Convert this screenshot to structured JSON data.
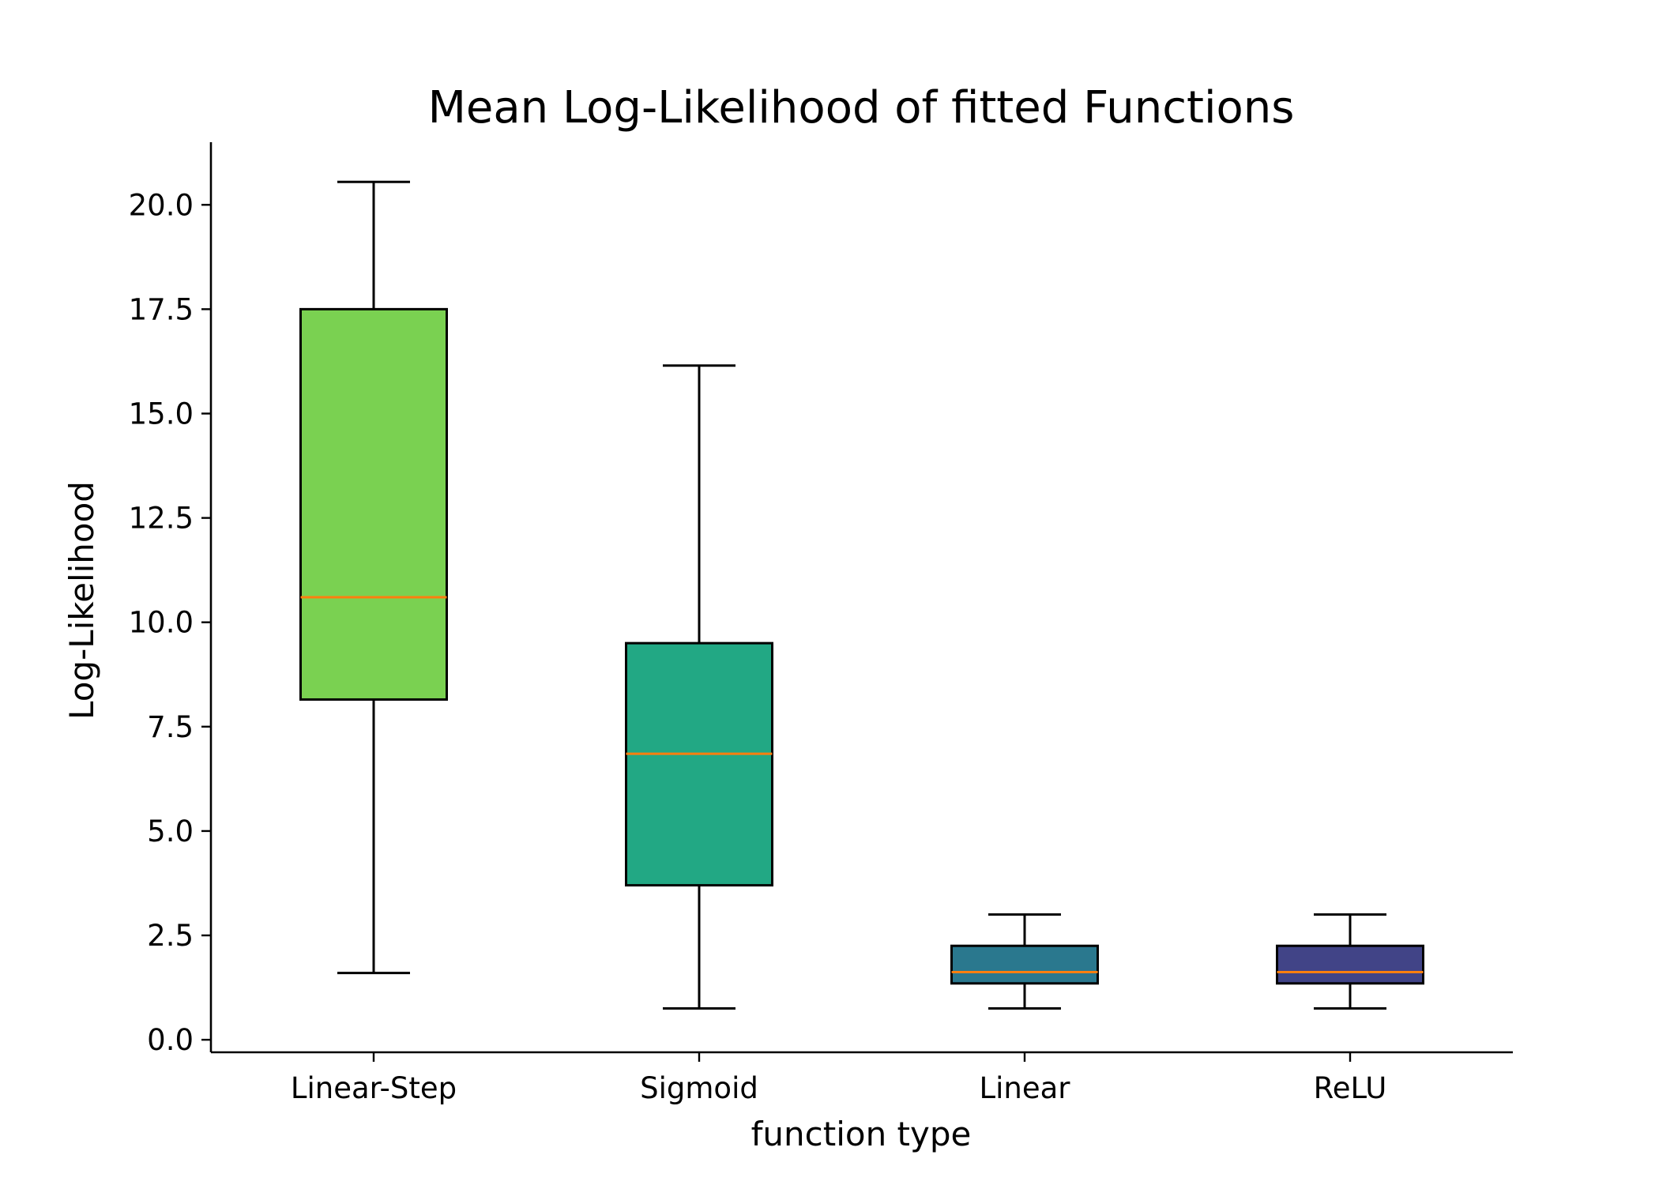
{
  "chart_data": {
    "type": "box",
    "title": "Mean Log-Likelihood of fitted Functions",
    "xlabel": "function type",
    "ylabel": "Log-Likelihood",
    "ylim": [
      -0.3,
      21.5
    ],
    "yticks": [
      "0.0",
      "2.5",
      "5.0",
      "7.5",
      "10.0",
      "12.5",
      "15.0",
      "17.5",
      "20.0"
    ],
    "grid": false,
    "categories": [
      "Linear-Step",
      "Sigmoid",
      "Linear",
      "ReLU"
    ],
    "boxes": [
      {
        "label": "Linear-Step",
        "whisker_low": 1.6,
        "q1": 8.15,
        "median": 10.6,
        "q3": 17.5,
        "whisker_high": 20.55,
        "color": "#7ad151"
      },
      {
        "label": "Sigmoid",
        "whisker_low": 0.75,
        "q1": 3.7,
        "median": 6.85,
        "q3": 9.5,
        "whisker_high": 16.15,
        "color": "#22a884"
      },
      {
        "label": "Linear",
        "whisker_low": 0.75,
        "q1": 1.35,
        "median": 1.62,
        "q3": 2.25,
        "whisker_high": 3.0,
        "color": "#2a788e"
      },
      {
        "label": "ReLU",
        "whisker_low": 0.75,
        "q1": 1.35,
        "median": 1.62,
        "q3": 2.25,
        "whisker_high": 3.0,
        "color": "#414487"
      }
    ],
    "median_color": "#ff7f0e"
  }
}
